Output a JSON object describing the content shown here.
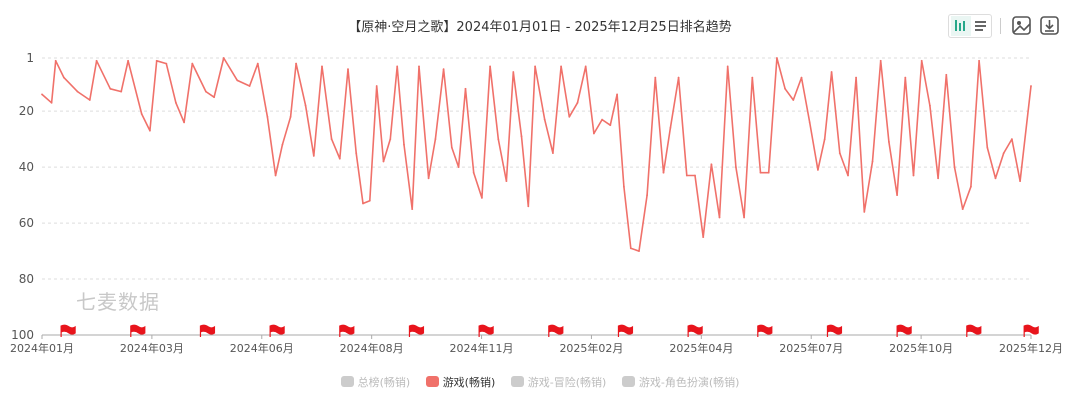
{
  "title": "【原神·空月之歌】2024年01月01日 - 2025年12月25日排名趋势",
  "watermark": "七麦数据",
  "icons": [
    "bar-chart-icon",
    "list-icon",
    "image-icon",
    "download-icon",
    "flag-icon"
  ],
  "colors": {
    "series": "#f0716a",
    "inactive": "#cccccc",
    "grid": "#dddddd",
    "flag": "#e8141c"
  },
  "chart_data": {
    "type": "line",
    "title": "【原神·空月之歌】2024年01月01日 - 2025年12月25日排名趋势",
    "xlabel": "",
    "ylabel": "",
    "ylim": [
      1,
      100
    ],
    "y_inverted": true,
    "yticks": [
      "1",
      "20",
      "40",
      "60",
      "80",
      "100"
    ],
    "xticks": [
      "2024年01月",
      "2024年03月",
      "2024年06月",
      "2024年08月",
      "2024年11月",
      "2025年02月",
      "2025年04月",
      "2025年07月",
      "2025年10月",
      "2025年12月"
    ],
    "xrange": [
      "2024-01-01",
      "2025-12-25"
    ],
    "grid": "horizontal dashed",
    "legend_position": "bottom",
    "legend": [
      {
        "name": "总榜(畅销)",
        "active": false
      },
      {
        "name": "游戏(畅销)",
        "active": true
      },
      {
        "name": "游戏-冒险(畅销)",
        "active": false
      },
      {
        "name": "游戏-角色扮演(畅销)",
        "active": false
      }
    ],
    "series": [
      {
        "name": "游戏(畅销)",
        "points": [
          [
            "2024-01-01",
            14
          ],
          [
            "2024-01-08",
            17
          ],
          [
            "2024-01-11",
            2
          ],
          [
            "2024-01-17",
            8
          ],
          [
            "2024-01-27",
            13
          ],
          [
            "2024-02-05",
            16
          ],
          [
            "2024-02-10",
            2
          ],
          [
            "2024-02-20",
            12
          ],
          [
            "2024-02-28",
            13
          ],
          [
            "2024-03-04",
            2
          ],
          [
            "2024-03-14",
            21
          ],
          [
            "2024-03-20",
            27
          ],
          [
            "2024-03-25",
            2
          ],
          [
            "2024-04-01",
            3
          ],
          [
            "2024-04-08",
            17
          ],
          [
            "2024-04-14",
            24
          ],
          [
            "2024-04-20",
            3
          ],
          [
            "2024-04-30",
            13
          ],
          [
            "2024-05-06",
            15
          ],
          [
            "2024-05-13",
            1
          ],
          [
            "2024-05-23",
            9
          ],
          [
            "2024-06-01",
            11
          ],
          [
            "2024-06-07",
            3
          ],
          [
            "2024-06-14",
            22
          ],
          [
            "2024-06-20",
            43
          ],
          [
            "2024-06-25",
            32
          ],
          [
            "2024-07-01",
            22
          ],
          [
            "2024-07-05",
            3
          ],
          [
            "2024-07-12",
            18
          ],
          [
            "2024-07-18",
            36
          ],
          [
            "2024-07-24",
            4
          ],
          [
            "2024-07-31",
            30
          ],
          [
            "2024-08-06",
            37
          ],
          [
            "2024-08-12",
            5
          ],
          [
            "2024-08-18",
            35
          ],
          [
            "2024-08-23",
            53
          ],
          [
            "2024-08-28",
            52
          ],
          [
            "2024-09-02",
            11
          ],
          [
            "2024-09-07",
            38
          ],
          [
            "2024-09-12",
            30
          ],
          [
            "2024-09-17",
            4
          ],
          [
            "2024-09-22",
            32
          ],
          [
            "2024-09-28",
            55
          ],
          [
            "2024-10-03",
            4
          ],
          [
            "2024-10-10",
            44
          ],
          [
            "2024-10-15",
            30
          ],
          [
            "2024-10-21",
            5
          ],
          [
            "2024-10-27",
            33
          ],
          [
            "2024-11-01",
            40
          ],
          [
            "2024-11-06",
            12
          ],
          [
            "2024-11-12",
            42
          ],
          [
            "2024-11-18",
            51
          ],
          [
            "2024-11-24",
            4
          ],
          [
            "2024-11-30",
            30
          ],
          [
            "2024-12-06",
            45
          ],
          [
            "2024-12-11",
            6
          ],
          [
            "2024-12-17",
            29
          ],
          [
            "2024-12-22",
            54
          ],
          [
            "2024-12-27",
            4
          ],
          [
            "2025-01-03",
            23
          ],
          [
            "2025-01-09",
            35
          ],
          [
            "2025-01-15",
            4
          ],
          [
            "2025-01-21",
            22
          ],
          [
            "2025-01-27",
            17
          ],
          [
            "2025-02-02",
            4
          ],
          [
            "2025-02-08",
            28
          ],
          [
            "2025-02-14",
            23
          ],
          [
            "2025-02-20",
            25
          ],
          [
            "2025-02-25",
            14
          ],
          [
            "2025-03-02",
            47
          ],
          [
            "2025-03-07",
            69
          ],
          [
            "2025-03-13",
            70
          ],
          [
            "2025-03-19",
            50
          ],
          [
            "2025-03-25",
            8
          ],
          [
            "2025-03-31",
            42
          ],
          [
            "2025-04-05",
            26
          ],
          [
            "2025-04-11",
            8
          ],
          [
            "2025-04-17",
            43
          ],
          [
            "2025-04-23",
            43
          ],
          [
            "2025-04-29",
            65
          ],
          [
            "2025-05-05",
            39
          ],
          [
            "2025-05-11",
            58
          ],
          [
            "2025-05-17",
            4
          ],
          [
            "2025-05-23",
            40
          ],
          [
            "2025-05-29",
            58
          ],
          [
            "2025-06-04",
            8
          ],
          [
            "2025-06-10",
            42
          ],
          [
            "2025-06-16",
            42
          ],
          [
            "2025-06-22",
            1
          ],
          [
            "2025-06-28",
            12
          ],
          [
            "2025-07-04",
            16
          ],
          [
            "2025-07-10",
            8
          ],
          [
            "2025-07-16",
            24
          ],
          [
            "2025-07-22",
            41
          ],
          [
            "2025-07-27",
            30
          ],
          [
            "2025-08-01",
            6
          ],
          [
            "2025-08-07",
            35
          ],
          [
            "2025-08-13",
            43
          ],
          [
            "2025-08-19",
            8
          ],
          [
            "2025-08-25",
            56
          ],
          [
            "2025-08-31",
            38
          ],
          [
            "2025-09-06",
            2
          ],
          [
            "2025-09-12",
            31
          ],
          [
            "2025-09-18",
            50
          ],
          [
            "2025-09-24",
            8
          ],
          [
            "2025-09-30",
            43
          ],
          [
            "2025-10-06",
            2
          ],
          [
            "2025-10-12",
            18
          ],
          [
            "2025-10-18",
            44
          ],
          [
            "2025-10-24",
            7
          ],
          [
            "2025-10-30",
            40
          ],
          [
            "2025-11-05",
            55
          ],
          [
            "2025-11-11",
            47
          ],
          [
            "2025-11-17",
            2
          ],
          [
            "2025-11-23",
            33
          ],
          [
            "2025-11-29",
            44
          ],
          [
            "2025-12-05",
            35
          ],
          [
            "2025-12-11",
            30
          ],
          [
            "2025-12-17",
            45
          ],
          [
            "2025-12-25",
            11
          ]
        ]
      }
    ],
    "markers": [
      "2024-01-15",
      "2024-03-06",
      "2024-04-26",
      "2024-06-16",
      "2024-08-06",
      "2024-09-26",
      "2024-11-16",
      "2025-01-06",
      "2025-02-26",
      "2025-04-18",
      "2025-06-08",
      "2025-07-29",
      "2025-09-18",
      "2025-11-08",
      "2025-12-20"
    ]
  }
}
